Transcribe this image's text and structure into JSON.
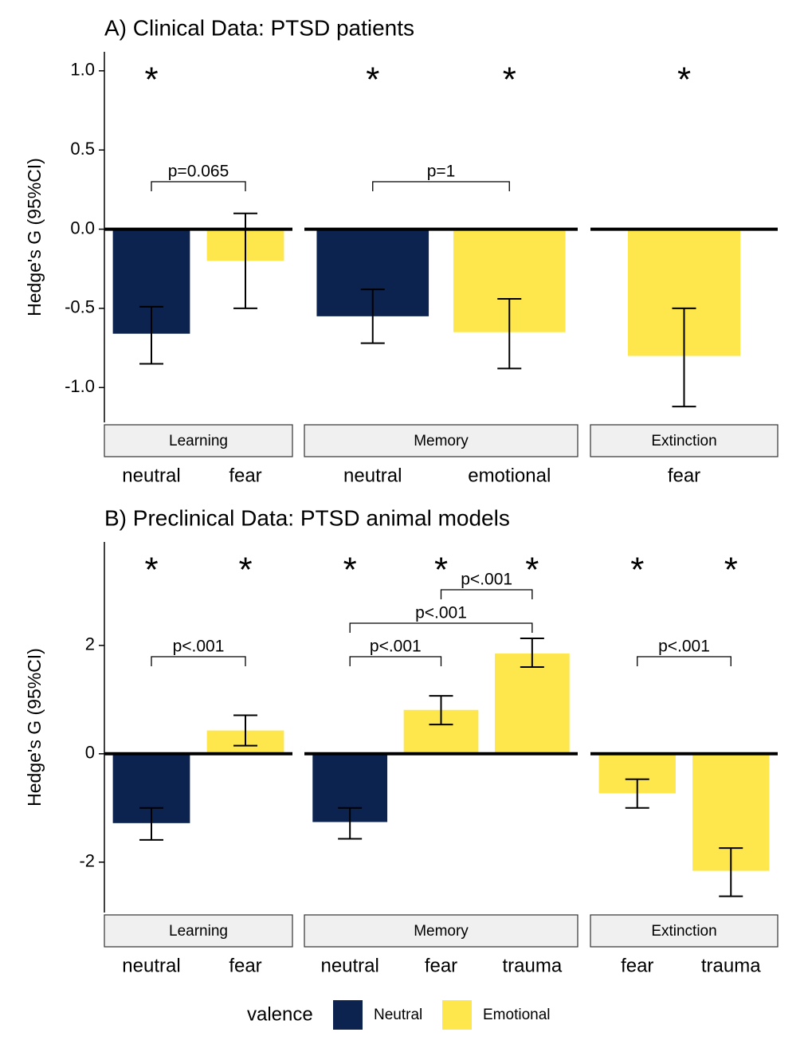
{
  "chart_data": [
    {
      "type": "bar",
      "title": "A) Clinical Data: PTSD patients",
      "y_label": "Hedge's G (95%CI)",
      "ylim": [
        -1.22,
        1.12
      ],
      "yticks": [
        {
          "value": 1,
          "label": "1.0"
        },
        0.5,
        {
          "value": 0,
          "label": "0.0"
        },
        -0.5,
        {
          "value": -1,
          "label": "-1.0"
        }
      ],
      "facets": [
        {
          "name": "Learning",
          "categories": [
            "neutral",
            "fear"
          ],
          "values": [
            -0.66,
            -0.2
          ],
          "ci_lower": [
            -0.85,
            -0.5
          ],
          "ci_upper": [
            -0.49,
            0.1
          ],
          "colors": [
            "#0c234f",
            "#fde74c"
          ],
          "markers": [
            "*",
            null
          ],
          "comparisons": [
            {
              "from": 0,
              "to": 1,
              "label": "p=0.065"
            }
          ]
        },
        {
          "name": "Memory",
          "categories": [
            "neutral",
            "emotional"
          ],
          "values": [
            -0.55,
            -0.65
          ],
          "ci_lower": [
            -0.72,
            -0.88
          ],
          "ci_upper": [
            -0.38,
            -0.44
          ],
          "colors": [
            "#0c234f",
            "#fde74c"
          ],
          "markers": [
            "*",
            "*"
          ],
          "comparisons": [
            {
              "from": 0,
              "to": 1,
              "label": "p=1"
            }
          ]
        },
        {
          "name": "Extinction",
          "categories": [
            "fear"
          ],
          "values": [
            -0.8
          ],
          "ci_lower": [
            -1.12
          ],
          "ci_upper": [
            -0.5
          ],
          "colors": [
            "#fde74c"
          ],
          "markers": [
            "*"
          ],
          "comparisons": []
        }
      ]
    },
    {
      "type": "bar",
      "title": "B) Preclinical Data: PTSD animal models",
      "y_label": "Hedge's G (95%CI)",
      "ylim": [
        -2.93,
        3.91
      ],
      "yticks": [
        2,
        0,
        -2
      ],
      "facets": [
        {
          "name": "Learning",
          "categories": [
            "neutral",
            "fear"
          ],
          "values": [
            -1.28,
            0.43
          ],
          "ci_lower": [
            -1.59,
            0.15
          ],
          "ci_upper": [
            -1.0,
            0.71
          ],
          "colors": [
            "#0c234f",
            "#fde74c"
          ],
          "markers": [
            "*",
            "*"
          ],
          "comparisons": [
            {
              "from": 0,
              "to": 1,
              "label": "p<.001"
            }
          ]
        },
        {
          "name": "Memory",
          "categories": [
            "neutral",
            "fear",
            "trauma"
          ],
          "values": [
            -1.26,
            0.81,
            1.85
          ],
          "ci_lower": [
            -1.57,
            0.54,
            1.6
          ],
          "ci_upper": [
            -1.0,
            1.07,
            2.13
          ],
          "colors": [
            "#0c234f",
            "#fde74c",
            "#fde74c"
          ],
          "markers": [
            "*",
            "*",
            "*"
          ],
          "comparisons": [
            {
              "from": 0,
              "to": 1,
              "label": "p<.001"
            },
            {
              "from": 0,
              "to": 2,
              "label": "p<.001"
            },
            {
              "from": 1,
              "to": 2,
              "label": "p<.001"
            }
          ]
        },
        {
          "name": "Extinction",
          "categories": [
            "fear",
            "trauma"
          ],
          "values": [
            -0.73,
            -2.16
          ],
          "ci_lower": [
            -1.0,
            -2.63
          ],
          "ci_upper": [
            -0.47,
            -1.74
          ],
          "colors": [
            "#fde74c",
            "#fde74c"
          ],
          "markers": [
            "*",
            "*"
          ],
          "comparisons": [
            {
              "from": 0,
              "to": 1,
              "label": "p<.001"
            }
          ]
        }
      ]
    }
  ],
  "legend": {
    "title": "valence",
    "entries": [
      {
        "name": "Neutral",
        "color": "#0c234f"
      },
      {
        "name": "Emotional",
        "color": "#fde74c"
      }
    ]
  }
}
